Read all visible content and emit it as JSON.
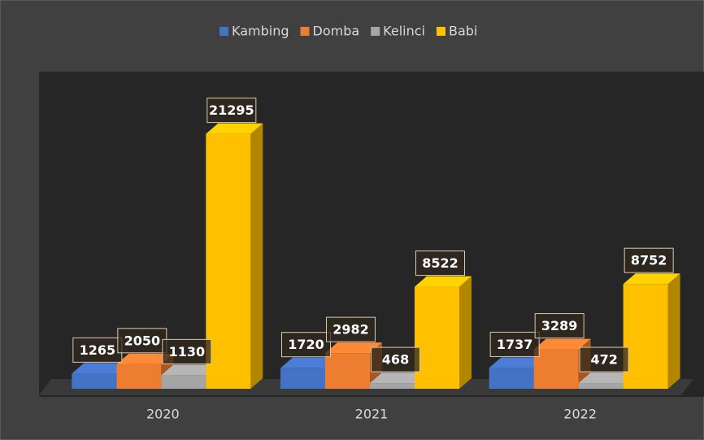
{
  "chart_data": {
    "type": "bar",
    "categories": [
      "2020",
      "2021",
      "2022"
    ],
    "series": [
      {
        "name": "Kambing",
        "color": "#4472c4",
        "values": [
          1265,
          1720,
          1737
        ]
      },
      {
        "name": "Domba",
        "color": "#ed7d31",
        "values": [
          2050,
          2982,
          3289
        ]
      },
      {
        "name": "Kelinci",
        "color": "#a5a5a5",
        "values": [
          1130,
          468,
          472
        ]
      },
      {
        "name": "Babi",
        "color": "#ffc000",
        "values": [
          21295,
          8522,
          8752
        ]
      }
    ],
    "ylim": [
      0,
      26500
    ],
    "legend": "top"
  }
}
